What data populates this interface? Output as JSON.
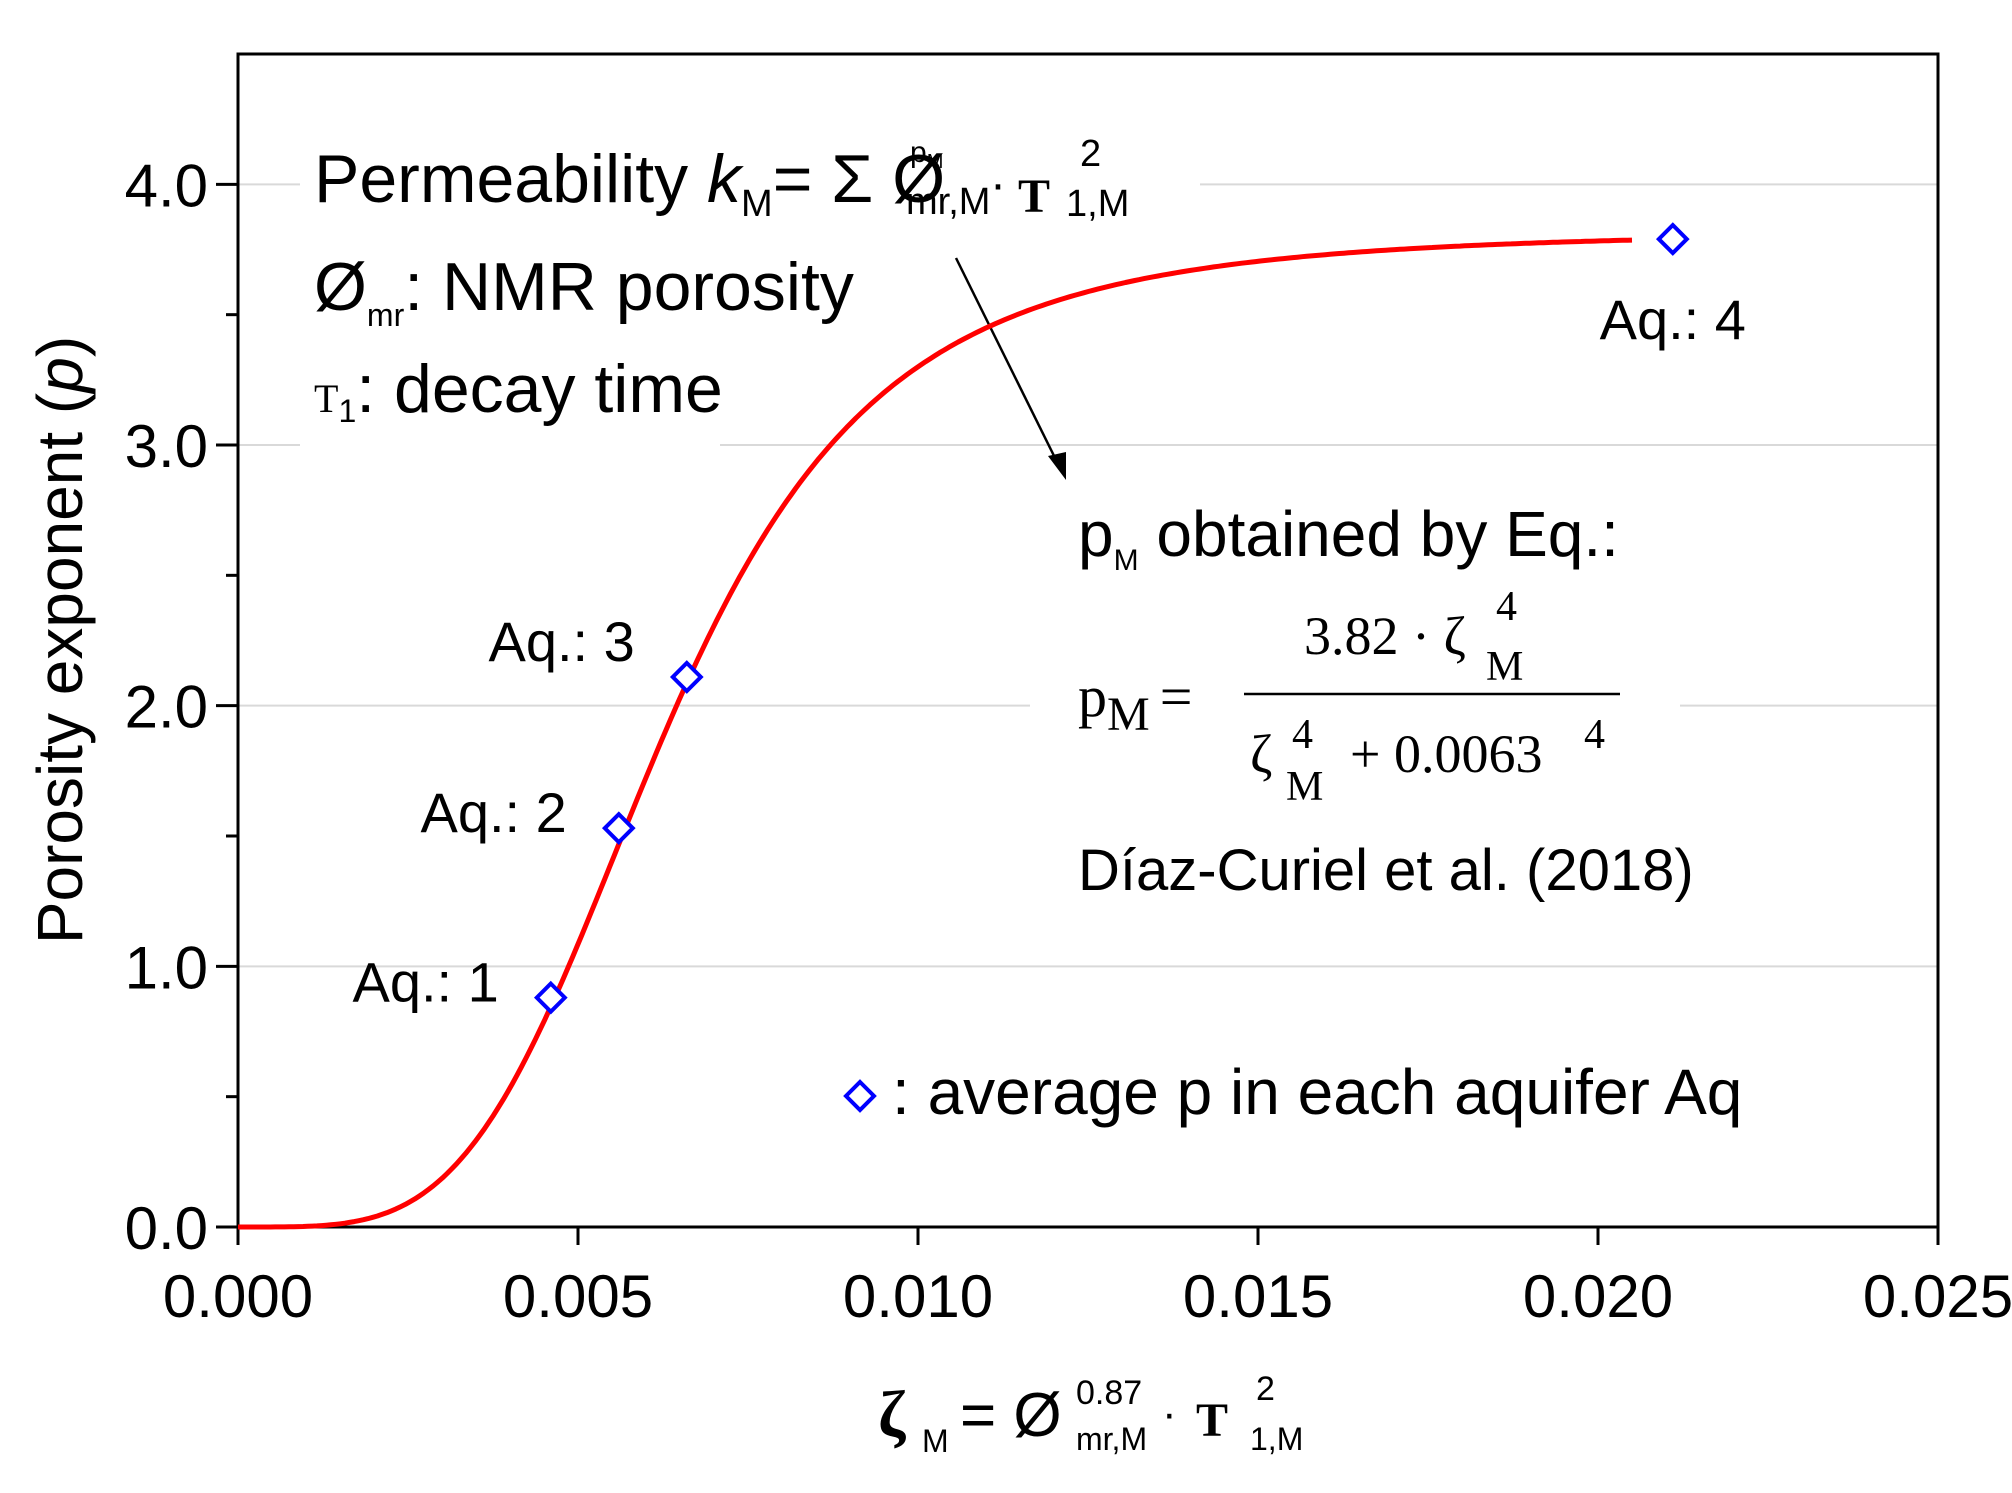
{
  "chart_data": {
    "type": "line",
    "title": "",
    "xlabel": {
      "main": "ζ",
      "main_sub": "M",
      "eq": "= Ø",
      "phi_sup": "0.87",
      "phi_sub": "mr,M",
      "dot": "·",
      "tau": "T",
      "tau_sup": "2",
      "tau_sub": "1,M"
    },
    "ylabel": {
      "before": "Porosity exponent (",
      "italic": "p",
      "after": ")"
    },
    "xlim": [
      0,
      0.025
    ],
    "ylim": [
      0,
      4.5
    ],
    "x_ticks": [
      0.0,
      0.005,
      0.01,
      0.015,
      0.02,
      0.025
    ],
    "x_tick_labels": [
      "0.000",
      "0.005",
      "0.010",
      "0.015",
      "0.020",
      "0.025"
    ],
    "y_major_ticks": [
      0,
      1,
      2,
      3,
      4
    ],
    "y_tick_labels": [
      "0.0",
      "1.0",
      "2.0",
      "3.0",
      "4.0"
    ],
    "y_minor_ticks": [
      0.5,
      1.5,
      2.5,
      3.5
    ],
    "gridlines": "horizontal",
    "series": [
      {
        "name": "pM = 3.82·ζ⁴ / (ζ⁴ + 0.0063⁴)",
        "kind": "curve",
        "color": "#ff0000",
        "formula": {
          "a": 3.82,
          "b": 0.0063,
          "n": 4
        },
        "x_range": [
          0,
          0.0205
        ]
      },
      {
        "name": "average p in each aquifer Aq",
        "kind": "marker",
        "marker": "diamond-open",
        "color": "#0000ff",
        "points": [
          {
            "x": 0.0046,
            "y": 0.88,
            "label": "Aq.: 1",
            "label_pos": "left"
          },
          {
            "x": 0.0056,
            "y": 1.53,
            "label": "Aq.: 2",
            "label_pos": "left"
          },
          {
            "x": 0.0066,
            "y": 2.11,
            "label": "Aq.: 3",
            "label_pos": "upper-left"
          },
          {
            "x": 0.0211,
            "y": 3.79,
            "label": "Aq.: 4",
            "label_pos": "below"
          }
        ]
      }
    ],
    "annotations": {
      "permeability": {
        "prefix": "Permeability ",
        "k": "k",
        "k_sub": "M",
        "eq": "= Σ Ø",
        "phi_sup": "p",
        "phi_sup_sub": "M",
        "phi_sub": "mr,M",
        "dot": "·",
        "tau": "T",
        "tau_sup": "2",
        "tau_sub": "1,M"
      },
      "nmr": {
        "symbol": "Ø",
        "sub": "mr",
        "text": ": NMR porosity"
      },
      "decay": {
        "symbol": "T",
        "sub": "1",
        "text": ": decay time"
      },
      "obtained": {
        "p": "p",
        "p_sub": "M",
        "text": " obtained by Eq.:"
      },
      "equation": {
        "lhs": "p",
        "lhs_sub": "M",
        "eq": "=",
        "num": "3.82 · ζ",
        "num_sup": "4",
        "num_sub": "M",
        "den_zeta": "ζ",
        "den_sup": "4",
        "den_sub": "M",
        "den_rest": "+ 0.0063",
        "den_rest_sup": "4"
      },
      "citation": "Díaz-Curiel et al. (2018)",
      "legend_text": ": average p in each aquifer Aq"
    }
  }
}
